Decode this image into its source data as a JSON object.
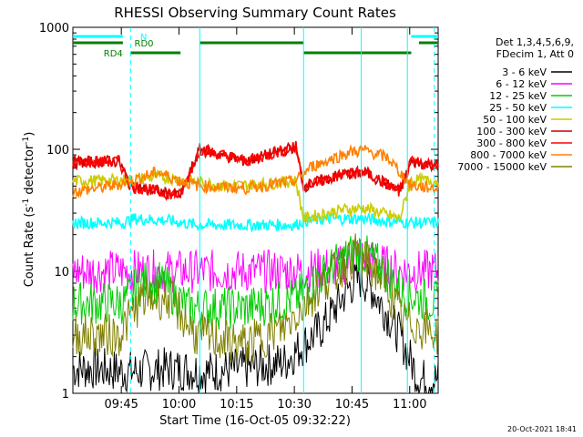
{
  "chart_data": {
    "type": "line",
    "title": "RHESSI Observing Summary Count Rates",
    "xlabel": "Start Time (16-Oct-05 09:32:22)",
    "ylabel_base": "Count Rate (s",
    "ylabel_sup1": "-1",
    "ylabel_mid": " detector",
    "ylabel_sup2": "-1",
    "ylabel_end": ")",
    "yscale": "log",
    "ylim": [
      1,
      1000
    ],
    "xlim_minutes": [
      0,
      95
    ],
    "x_ticks": [
      {
        "label": "09:45",
        "minutes": 12.6
      },
      {
        "label": "10:00",
        "minutes": 27.6
      },
      {
        "label": "10:15",
        "minutes": 42.6
      },
      {
        "label": "10:30",
        "minutes": 57.6
      },
      {
        "label": "10:45",
        "minutes": 72.6
      },
      {
        "label": "11:00",
        "minutes": 87.6
      }
    ],
    "y_ticks": [
      {
        "label": "1",
        "value": 1
      },
      {
        "label": "10",
        "value": 10
      },
      {
        "label": "100",
        "value": 100
      },
      {
        "label": "1000",
        "value": 1000
      }
    ],
    "legend_header": [
      "Det 1,3,4,5,6,9,",
      "FDecim 1, Att 0"
    ],
    "series": [
      {
        "name": "3 - 6 keV",
        "color": "#000000",
        "values": [
          [
            0,
            1.6
          ],
          [
            5,
            1.6
          ],
          [
            15,
            1.5
          ],
          [
            25,
            1.6
          ],
          [
            35,
            1.5
          ],
          [
            45,
            1.6
          ],
          [
            55,
            1.8
          ],
          [
            65,
            3.5
          ],
          [
            72,
            7.5
          ],
          [
            75,
            8.8
          ],
          [
            78,
            7
          ],
          [
            85,
            3
          ],
          [
            90,
            1.3
          ],
          [
            95,
            1.3
          ]
        ]
      },
      {
        "name": "6 - 12 keV",
        "color": "#ff00ff",
        "values": [
          [
            0,
            10
          ],
          [
            20,
            10
          ],
          [
            40,
            10
          ],
          [
            60,
            10
          ],
          [
            70,
            11
          ],
          [
            74,
            14
          ],
          [
            78,
            12
          ],
          [
            85,
            10
          ],
          [
            95,
            10
          ]
        ]
      },
      {
        "name": "12 - 25 keV",
        "color": "#00cc00",
        "values": [
          [
            0,
            5.5
          ],
          [
            13,
            5.5
          ],
          [
            18,
            8
          ],
          [
            23,
            8
          ],
          [
            30,
            5
          ],
          [
            45,
            5
          ],
          [
            58,
            6
          ],
          [
            66,
            10
          ],
          [
            74,
            15
          ],
          [
            80,
            11
          ],
          [
            86,
            6.5
          ],
          [
            95,
            5.5
          ]
        ]
      },
      {
        "name": "25 - 50 keV",
        "color": "#00ffff",
        "values": [
          [
            0,
            25
          ],
          [
            13,
            25
          ],
          [
            16,
            27
          ],
          [
            25,
            26
          ],
          [
            32,
            24
          ],
          [
            45,
            24
          ],
          [
            58,
            24
          ],
          [
            60,
            26
          ],
          [
            68,
            27
          ],
          [
            76,
            27
          ],
          [
            80,
            26
          ],
          [
            88,
            25
          ],
          [
            95,
            25
          ]
        ]
      },
      {
        "name": "50 - 100 keV",
        "color": "#cccc00",
        "values": [
          [
            0,
            55
          ],
          [
            15,
            56
          ],
          [
            22,
            60
          ],
          [
            30,
            55
          ],
          [
            40,
            50
          ],
          [
            50,
            52
          ],
          [
            58,
            55
          ],
          [
            60,
            27
          ],
          [
            70,
            32
          ],
          [
            76,
            33
          ],
          [
            85,
            27
          ],
          [
            88,
            56
          ],
          [
            95,
            55
          ]
        ]
      },
      {
        "name": "100 - 300 keV",
        "color": "#cc0000",
        "values": [
          [
            0,
            78
          ],
          [
            12,
            80
          ],
          [
            15,
            50
          ],
          [
            22,
            45
          ],
          [
            28,
            42
          ],
          [
            33,
            100
          ],
          [
            45,
            80
          ],
          [
            58,
            105
          ],
          [
            60,
            50
          ],
          [
            70,
            62
          ],
          [
            76,
            65
          ],
          [
            85,
            45
          ],
          [
            88,
            78
          ],
          [
            95,
            75
          ]
        ]
      },
      {
        "name": "300 - 800 keV",
        "color": "#ff0000",
        "values": [
          [
            0,
            78
          ],
          [
            12,
            80
          ],
          [
            15,
            50
          ],
          [
            22,
            45
          ],
          [
            28,
            42
          ],
          [
            33,
            100
          ],
          [
            45,
            80
          ],
          [
            58,
            105
          ],
          [
            60,
            50
          ],
          [
            70,
            62
          ],
          [
            76,
            65
          ],
          [
            85,
            45
          ],
          [
            88,
            78
          ],
          [
            95,
            75
          ]
        ]
      },
      {
        "name": "800 - 7000 keV",
        "color": "#ff8000",
        "values": [
          [
            0,
            45
          ],
          [
            10,
            50
          ],
          [
            15,
            55
          ],
          [
            22,
            65
          ],
          [
            28,
            55
          ],
          [
            33,
            50
          ],
          [
            45,
            48
          ],
          [
            58,
            55
          ],
          [
            62,
            72
          ],
          [
            72,
            95
          ],
          [
            76,
            98
          ],
          [
            82,
            85
          ],
          [
            88,
            50
          ],
          [
            95,
            48
          ]
        ]
      },
      {
        "name": "7000 - 15000 keV",
        "color": "#808000",
        "values": [
          [
            0,
            3
          ],
          [
            12,
            3
          ],
          [
            18,
            6
          ],
          [
            25,
            6
          ],
          [
            32,
            3
          ],
          [
            45,
            2.5
          ],
          [
            55,
            3.5
          ],
          [
            65,
            8
          ],
          [
            74,
            14
          ],
          [
            80,
            9
          ],
          [
            86,
            4
          ],
          [
            95,
            3
          ]
        ]
      }
    ],
    "flags": [
      {
        "label": "N",
        "color": "#00ffff"
      },
      {
        "label": "RD0",
        "color": "#008000"
      },
      {
        "label": "RD4",
        "color": "#008000"
      }
    ]
  },
  "footer": {
    "timestamp": "20-Oct-2021 18:41"
  }
}
